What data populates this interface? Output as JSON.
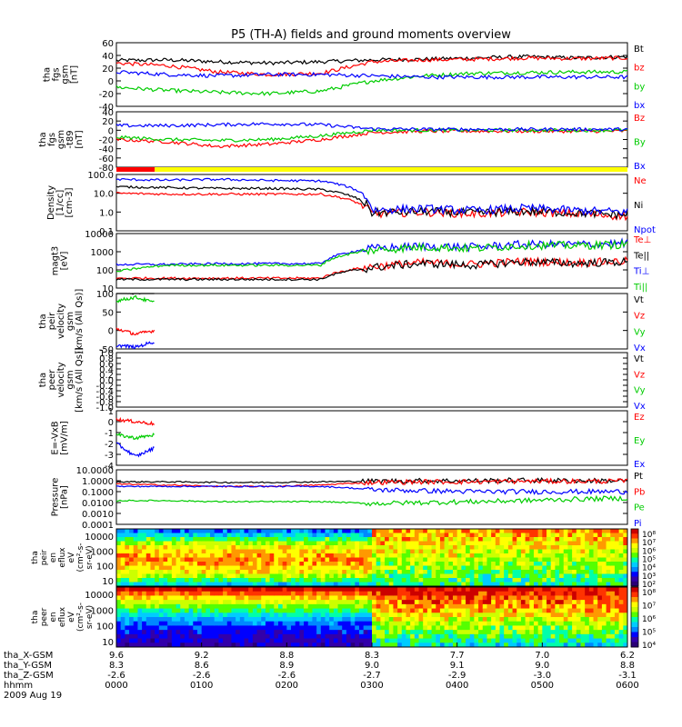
{
  "chart_data": {
    "type": "line",
    "title": "P5 (TH-A) fields and ground moments overview",
    "date": "2009 Aug 19",
    "time_axis": {
      "range": [
        "0000",
        "0600"
      ],
      "rows": [
        {
          "label": "tha_X-GSM",
          "values": [
            "9.6",
            "9.2",
            "8.8",
            "8.3",
            "7.7",
            "7.0",
            "6.2"
          ]
        },
        {
          "label": "tha_Y-GSM",
          "values": [
            "8.3",
            "8.6",
            "8.9",
            "9.0",
            "9.1",
            "9.0",
            "8.8"
          ]
        },
        {
          "label": "tha_Z-GSM",
          "values": [
            "-2.6",
            "-2.6",
            "-2.6",
            "-2.7",
            "-2.9",
            "-3.0",
            "-3.1"
          ]
        },
        {
          "label": "hhmm",
          "values": [
            "0000",
            "0100",
            "0200",
            "0300",
            "0400",
            "0500",
            "0600"
          ]
        }
      ]
    },
    "panels": [
      {
        "ylabel": [
          "tha",
          "fgs",
          "gsm",
          "[nT]"
        ],
        "scale": "linear",
        "ylim": [
          -40,
          60
        ],
        "ticks": [
          "60",
          "40",
          "20",
          "0",
          "-20",
          "-40"
        ],
        "series": [
          {
            "name": "Bt",
            "color": "#000000",
            "values": [
              32,
              33,
              30,
              28,
              30,
              33,
              34,
              36,
              38,
              36,
              38
            ]
          },
          {
            "name": "bz",
            "color": "#ff0000",
            "values": [
              28,
              24,
              14,
              10,
              12,
              30,
              33,
              34,
              36,
              35,
              36
            ]
          },
          {
            "name": "by",
            "color": "#00cc00",
            "values": [
              -10,
              -15,
              -18,
              -20,
              -16,
              0,
              8,
              12,
              13,
              14,
              14
            ]
          },
          {
            "name": "bx",
            "color": "#0000ff",
            "values": [
              14,
              10,
              8,
              10,
              10,
              8,
              6,
              6,
              6,
              6,
              6
            ]
          }
        ]
      },
      {
        "ylabel": [
          "tha",
          "fgs",
          "gsm",
          "-t89",
          "[nT]"
        ],
        "scale": "linear",
        "ylim": [
          -80,
          40
        ],
        "ticks": [
          "40",
          "20",
          "0",
          "-20",
          "-40",
          "-60",
          "-80"
        ],
        "series": [
          {
            "name": "Bz",
            "color": "#ff0000",
            "values": [
              -20,
              -25,
              -35,
              -30,
              -20,
              -5,
              -2,
              -2,
              -2,
              -2,
              -2
            ]
          },
          {
            "name": "By",
            "color": "#00cc00",
            "values": [
              -15,
              -20,
              -22,
              -20,
              -12,
              0,
              0,
              0,
              0,
              0,
              0
            ]
          },
          {
            "name": "Bx",
            "color": "#0000ff",
            "values": [
              10,
              10,
              12,
              14,
              12,
              3,
              2,
              2,
              2,
              2,
              2
            ]
          }
        ]
      },
      {
        "ylabel": [
          "Density",
          "[1/cc]",
          "[cm-3]"
        ],
        "scale": "log",
        "ylim": [
          0.1,
          100
        ],
        "ticks": [
          "100.0",
          "10.0",
          "1.0",
          "0.1"
        ],
        "series": [
          {
            "name": "Ne",
            "color": "#ff0000",
            "values": [
              10,
              9,
              9,
              9,
              9,
              0.8,
              1,
              0.8,
              1,
              0.8,
              0.6
            ]
          },
          {
            "name": "Ni",
            "color": "#000000",
            "values": [
              22,
              20,
              18,
              18,
              16,
              0.9,
              1.1,
              0.9,
              1.1,
              0.9,
              0.7
            ]
          },
          {
            "name": "Npot",
            "color": "#0000ff",
            "values": [
              55,
              50,
              55,
              48,
              45,
              1.3,
              1.5,
              1.2,
              1.6,
              1.2,
              1.0
            ]
          }
        ]
      },
      {
        "ylabel": [
          "magt3",
          "[eV]"
        ],
        "scale": "log",
        "ylim": [
          10,
          10000
        ],
        "ticks": [
          "10000",
          "1000",
          "100",
          "10"
        ],
        "series": [
          {
            "name": "Te⊥",
            "color": "#ff0000",
            "values": [
              35,
              35,
              35,
              35,
              35,
              150,
              250,
              200,
              300,
              250,
              300
            ]
          },
          {
            "name": "Te||",
            "color": "#000000",
            "values": [
              30,
              30,
              30,
              30,
              30,
              130,
              230,
              180,
              280,
              230,
              280
            ]
          },
          {
            "name": "Ti⊥",
            "color": "#0000ff",
            "values": [
              200,
              200,
              220,
              220,
              220,
              1500,
              2000,
              1800,
              2500,
              2500,
              3000
            ]
          },
          {
            "name": "Ti||",
            "color": "#00cc00",
            "values": [
              80,
              180,
              180,
              180,
              180,
              1200,
              1800,
              1500,
              2200,
              2200,
              2500
            ]
          }
        ]
      },
      {
        "ylabel": [
          "tha",
          "peir",
          "velocity",
          "gsm",
          "[km/s (All Qs)]"
        ],
        "scale": "linear",
        "ylim": [
          -50,
          100
        ],
        "ticks": [
          "100",
          "50",
          "0",
          "-50"
        ],
        "series": [
          {
            "name": "Vt",
            "color": "#000000",
            "values": [
              110,
              100,
              115
            ]
          },
          {
            "name": "Vz",
            "color": "#ff0000",
            "values": [
              5,
              -10,
              0
            ]
          },
          {
            "name": "Vy",
            "color": "#00cc00",
            "values": [
              80,
              90,
              75
            ]
          },
          {
            "name": "Vx",
            "color": "#0000ff",
            "values": [
              -40,
              -45,
              -30
            ]
          }
        ]
      },
      {
        "ylabel": [
          "tha",
          "peer",
          "velocity",
          "gsm",
          "[km/s (All Qs)]"
        ],
        "scale": "linear",
        "ylim": [
          -1,
          1
        ],
        "ticks": [
          "1.0",
          "0.8",
          "0.6",
          "0.4",
          "0.2",
          "0.0",
          "-0.2",
          "-0.4",
          "-0.6",
          "-0.8",
          "-1.0"
        ],
        "series": [
          {
            "name": "Vt",
            "color": "#000000",
            "values": []
          },
          {
            "name": "Vz",
            "color": "#ff0000",
            "values": []
          },
          {
            "name": "Vy",
            "color": "#00cc00",
            "values": []
          },
          {
            "name": "Vx",
            "color": "#0000ff",
            "values": []
          }
        ]
      },
      {
        "ylabel": [
          "E=-VxB",
          "[mV/m]"
        ],
        "scale": "linear",
        "ylim": [
          -4,
          1
        ],
        "ticks": [
          "1",
          "0",
          "-1",
          "-2",
          "-3",
          "-4"
        ],
        "series": [
          {
            "name": "Ez",
            "color": "#ff0000",
            "values": [
              0.2,
              0,
              -0.2
            ]
          },
          {
            "name": "Ey",
            "color": "#00cc00",
            "values": [
              -1.2,
              -1.5,
              -1.2
            ]
          },
          {
            "name": "Ex",
            "color": "#0000ff",
            "values": [
              -2,
              -3.2,
              -2.4
            ]
          }
        ]
      },
      {
        "ylabel": [
          "Pressure",
          "[nPa]"
        ],
        "scale": "log",
        "ylim": [
          0.0001,
          10
        ],
        "ticks": [
          "10.0000",
          "1.0000",
          "0.1000",
          "0.0100",
          "0.0010",
          "0.0001"
        ],
        "series": [
          {
            "name": "Pt",
            "color": "#000000",
            "values": [
              0.8,
              0.8,
              0.7,
              0.7,
              0.8,
              0.9,
              1,
              1,
              1.1,
              1,
              1
            ]
          },
          {
            "name": "Pb",
            "color": "#ff0000",
            "values": [
              0.5,
              0.4,
              0.3,
              0.3,
              0.4,
              0.7,
              0.8,
              0.8,
              0.9,
              0.9,
              0.9
            ]
          },
          {
            "name": "Pe",
            "color": "#00cc00",
            "values": [
              0.015,
              0.015,
              0.012,
              0.012,
              0.012,
              0.008,
              0.01,
              0.012,
              0.015,
              0.02,
              0.025
            ]
          },
          {
            "name": "Pi",
            "color": "#0000ff",
            "values": [
              0.3,
              0.3,
              0.3,
              0.3,
              0.3,
              0.15,
              0.12,
              0.1,
              0.1,
              0.1,
              0.1
            ]
          }
        ]
      }
    ],
    "spectrograms": [
      {
        "ylabel": [
          "tha",
          "peir",
          "en",
          "eflux",
          "eV",
          "(cm²-s-",
          "sr-eV)"
        ],
        "scale": "log",
        "ylim": [
          10,
          20000
        ],
        "ticks": [
          "10000",
          "1000",
          "100",
          "10"
        ],
        "colorbar_ticks": [
          "10⁸",
          "10⁷",
          "10⁶",
          "10⁵",
          "10⁴",
          "10³",
          "10²"
        ]
      },
      {
        "ylabel": [
          "tha",
          "peer",
          "en",
          "eflux",
          "eV",
          "(cm²-s-",
          "sr-eV)"
        ],
        "scale": "log",
        "ylim": [
          10,
          20000
        ],
        "ticks": [
          "10000",
          "1000",
          "100",
          "10"
        ],
        "colorbar_ticks": [
          "10⁸",
          "10⁷",
          "10⁶",
          "10⁵",
          "10⁴"
        ]
      }
    ],
    "bars": [
      {
        "color": "#ff0000",
        "from_hour": 0,
        "to_hour": 0.45
      },
      {
        "color": "#ffff00",
        "from_hour": 0.45,
        "to_hour": 6
      }
    ]
  }
}
